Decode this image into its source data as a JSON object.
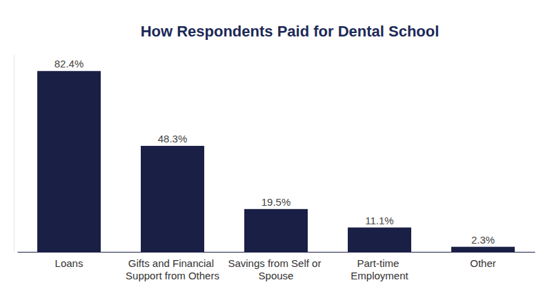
{
  "chart_data": {
    "type": "bar",
    "title": "How Respondents Paid for Dental School",
    "categories": [
      "Loans",
      "Gifts and Financial Support from Others",
      "Savings from Self or Spouse",
      "Part-time Employment",
      "Other"
    ],
    "values": [
      82.4,
      48.3,
      19.5,
      11.1,
      2.3
    ],
    "value_labels": [
      "82.4%",
      "48.3%",
      "19.5%",
      "11.1%",
      "2.3%"
    ],
    "color": "#1a1f45",
    "ylim": [
      0,
      90
    ],
    "grid": false,
    "data_labels": true,
    "tick_labels": "x"
  }
}
